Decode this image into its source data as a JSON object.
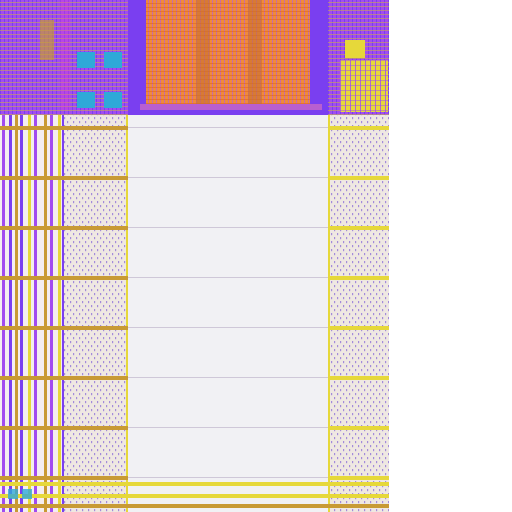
{
  "layout_view": {
    "tile_count": 1,
    "regions": [
      {
        "name": "dense-standard-cell-block",
        "dominant_layers": [
          "metal1-purple",
          "metal2-orange",
          "via-blue",
          "diffusion-gold"
        ]
      },
      {
        "name": "routed-core-macro",
        "dominant_layers": [
          "metal2-orange",
          "metal1-purple"
        ]
      },
      {
        "name": "right-logic-block",
        "dominant_layers": [
          "poly-yellow",
          "metal1-purple"
        ]
      },
      {
        "name": "left-power-bus-columns",
        "dominant_layers": [
          "metal1-purple",
          "metal2-gold"
        ]
      },
      {
        "name": "fill-pattern-column-left",
        "dominant_layers": [
          "fill-dots"
        ]
      },
      {
        "name": "empty-core-area",
        "dominant_layers": []
      },
      {
        "name": "fill-pattern-column-right",
        "dominant_layers": [
          "fill-dots",
          "metal-yellow"
        ]
      }
    ],
    "row_boundaries_visible": true
  },
  "colors": {
    "background": "#ffffff",
    "empty_area": "#f1f1f4",
    "fill_bg": "#efe8e2",
    "fill_dot": "#8a6cd8",
    "metal_purple": "#a24cf0",
    "metal_violet": "#7a3ff0",
    "metal_orange": "#f08a3a",
    "metal_gold": "#c89a34",
    "metal_yellow": "#e6d83a",
    "via_cyan": "#2fa9d8",
    "row_line": "#cfc8d8",
    "magenta": "#e23ad8"
  }
}
